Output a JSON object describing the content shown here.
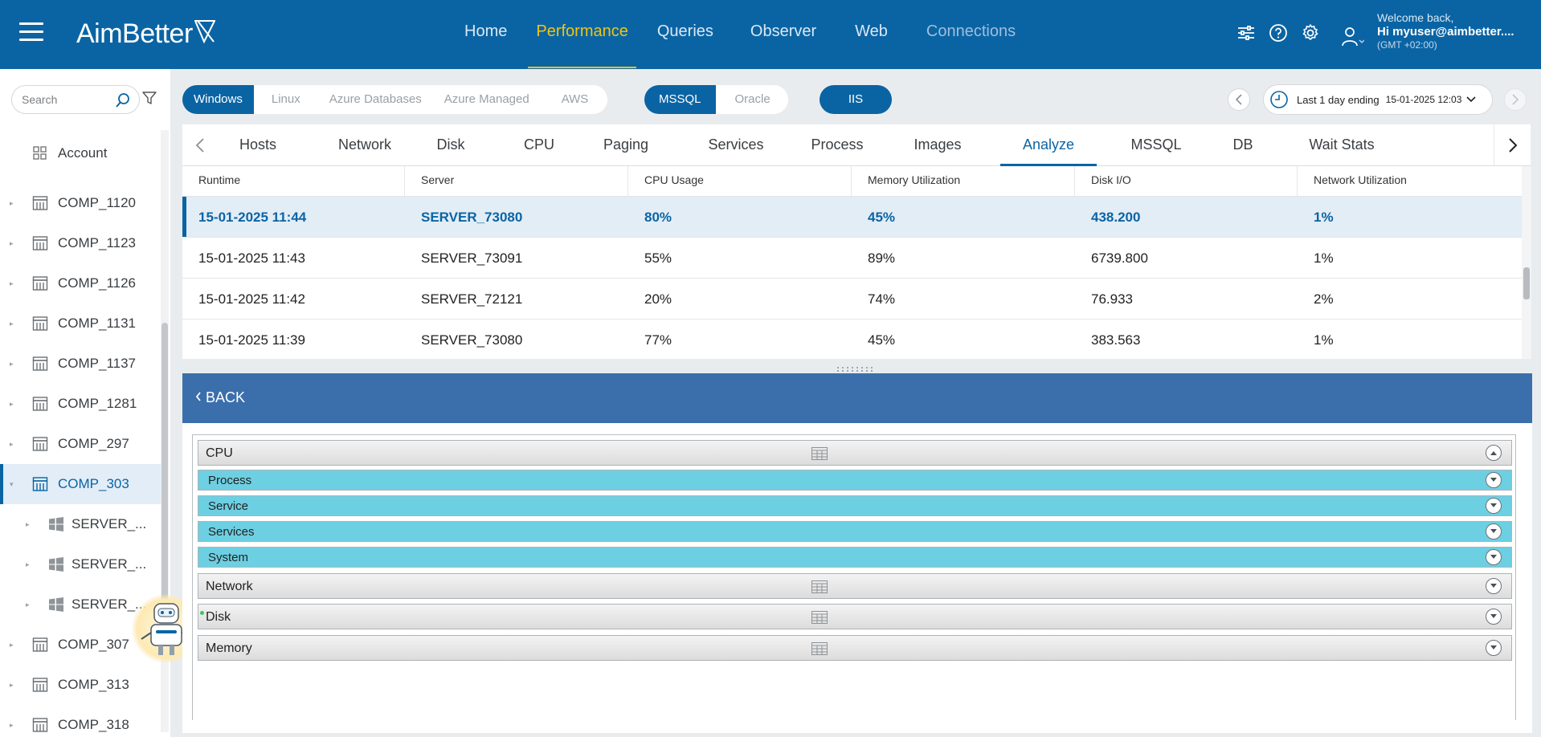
{
  "brand": {
    "name": "AimBetter"
  },
  "nav": {
    "items": [
      {
        "label": "Home"
      },
      {
        "label": "Performance"
      },
      {
        "label": "Queries"
      },
      {
        "label": "Observer"
      },
      {
        "label": "Web"
      },
      {
        "label": "Connections"
      }
    ],
    "active": "Performance"
  },
  "top_icons": [
    "sliders-icon",
    "help-icon",
    "settings-icon"
  ],
  "user": {
    "welcome": "Welcome back,",
    "name": "Hi myuser@aimbetter....",
    "timezone": "(GMT +02:00)"
  },
  "search": {
    "placeholder": "Search",
    "value": ""
  },
  "sidebar": {
    "items": [
      {
        "label": "Account",
        "type": "account"
      },
      {
        "label": "COMP_1120",
        "type": "company"
      },
      {
        "label": "COMP_1123",
        "type": "company"
      },
      {
        "label": "COMP_1126",
        "type": "company"
      },
      {
        "label": "COMP_1131",
        "type": "company"
      },
      {
        "label": "COMP_1137",
        "type": "company"
      },
      {
        "label": "COMP_1281",
        "type": "company"
      },
      {
        "label": "COMP_297",
        "type": "company"
      },
      {
        "label": "COMP_303",
        "type": "company",
        "selected": true
      },
      {
        "label": "SERVER_...",
        "type": "server"
      },
      {
        "label": "SERVER_...",
        "type": "server"
      },
      {
        "label": "SERVER_...",
        "type": "server"
      },
      {
        "label": "COMP_307",
        "type": "company"
      },
      {
        "label": "COMP_313",
        "type": "company"
      },
      {
        "label": "COMP_318",
        "type": "company"
      }
    ]
  },
  "filters": {
    "os": [
      "Windows",
      "Linux",
      "Azure Databases",
      "Azure Managed",
      "AWS"
    ],
    "os_active": "Windows",
    "db": [
      "MSSQL",
      "Oracle"
    ],
    "db_active": "MSSQL",
    "web": "IIS"
  },
  "date_range": {
    "label": "Last 1 day ending",
    "value": "15-01-2025 12:03"
  },
  "subtabs": {
    "items": [
      "Hosts",
      "Network",
      "Disk",
      "CPU",
      "Paging",
      "Services",
      "Process",
      "Images",
      "Analyze",
      "MSSQL",
      "DB",
      "Wait Stats"
    ],
    "active": "Analyze"
  },
  "grid": {
    "columns": [
      "Runtime",
      "Server",
      "CPU Usage",
      "Memory Utilization",
      "Disk I/O",
      "Network Utilization"
    ],
    "rows": [
      [
        "15-01-2025 11:44",
        "SERVER_73080",
        "80%",
        "45%",
        "438.200",
        "1%"
      ],
      [
        "15-01-2025 11:43",
        "SERVER_73091",
        "55%",
        "89%",
        "6739.800",
        "1%"
      ],
      [
        "15-01-2025 11:42",
        "SERVER_72121",
        "20%",
        "74%",
        "76.933",
        "2%"
      ],
      [
        "15-01-2025 11:39",
        "SERVER_73080",
        "77%",
        "45%",
        "383.563",
        "1%"
      ]
    ],
    "selected_row": 0
  },
  "back": {
    "label": "BACK"
  },
  "accordion": [
    {
      "label": "CPU",
      "style": "gray",
      "expanded": true,
      "has_grid": true
    },
    {
      "label": "Process",
      "style": "cyan",
      "expanded": false
    },
    {
      "label": "Service",
      "style": "cyan",
      "expanded": false
    },
    {
      "label": "Services",
      "style": "cyan",
      "expanded": false
    },
    {
      "label": "System",
      "style": "cyan",
      "expanded": false
    },
    {
      "label": "Network",
      "style": "gray",
      "expanded": false,
      "has_grid": true
    },
    {
      "label": "Disk",
      "style": "gray",
      "expanded": false,
      "has_grid": true,
      "status": "green"
    },
    {
      "label": "Memory",
      "style": "gray",
      "expanded": false,
      "has_grid": true
    }
  ],
  "colors": {
    "primary": "#0a64a4",
    "accent": "#f1c40f",
    "back_bar": "#3b6fab",
    "subsection": "#6dcfe2",
    "status_ok": "#42c45b"
  }
}
